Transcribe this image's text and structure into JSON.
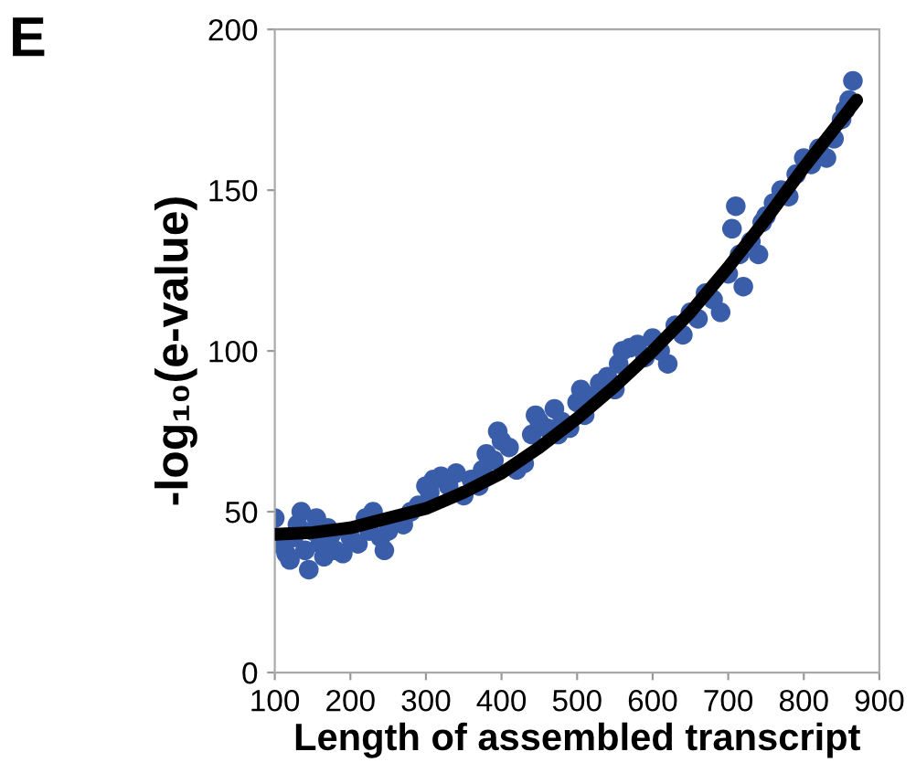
{
  "chart_data": {
    "type": "scatter",
    "xlabel": "Length of assembled transcript",
    "ylabel": "-log₁₀(e-value)",
    "annotations": [
      "E"
    ],
    "xlim": [
      100,
      900
    ],
    "xticks": [
      100,
      200,
      300,
      400,
      500,
      600,
      700,
      800,
      900
    ],
    "ylim": [
      0,
      200
    ],
    "yticks": [
      0,
      50,
      100,
      150,
      200
    ],
    "grid": false,
    "series": [
      {
        "color": "#3a5daa",
        "marker": "circle",
        "x": [
          100,
          105,
          110,
          115,
          120,
          125,
          130,
          135,
          140,
          145,
          150,
          155,
          160,
          165,
          170,
          175,
          180,
          190,
          200,
          210,
          220,
          225,
          230,
          240,
          245,
          250,
          260,
          270,
          280,
          290,
          300,
          305,
          310,
          320,
          330,
          340,
          350,
          360,
          370,
          375,
          380,
          390,
          395,
          400,
          410,
          420,
          430,
          440,
          445,
          450,
          460,
          470,
          475,
          480,
          490,
          500,
          505,
          510,
          520,
          530,
          540,
          550,
          555,
          560,
          570,
          580,
          590,
          600,
          610,
          620,
          630,
          640,
          650,
          660,
          670,
          680,
          690,
          700,
          705,
          710,
          715,
          720,
          730,
          740,
          745,
          750,
          760,
          770,
          780,
          790,
          800,
          810,
          820,
          830,
          840,
          850,
          855,
          860,
          865
        ],
        "values": [
          48,
          40,
          null,
          37,
          35,
          42,
          46,
          50,
          38,
          32,
          44,
          48,
          40,
          36,
          45,
          43,
          38,
          37,
          42,
          40,
          48,
          44,
          50,
          42,
          38,
          44,
          null,
          46,
          50,
          52,
          58,
          56,
          60,
          61,
          58,
          62,
          55,
          60,
          58,
          63,
          68,
          66,
          75,
          72,
          70,
          63,
          65,
          74,
          80,
          78,
          76,
          82,
          74,
          78,
          76,
          84,
          88,
          80,
          86,
          90,
          92,
          88,
          96,
          100,
          101,
          102,
          98,
          104,
          100,
          96,
          108,
          105,
          112,
          110,
          118,
          116,
          112,
          124,
          138,
          145,
          130,
          120,
          134,
          130,
          140,
          142,
          146,
          150,
          148,
          155,
          160,
          158,
          163,
          160,
          166,
          172,
          175,
          178,
          184
        ]
      },
      {
        "type": "line",
        "marker": "none",
        "color": "#000000",
        "x": [
          100,
          150,
          200,
          250,
          300,
          350,
          400,
          450,
          500,
          550,
          600,
          650,
          700,
          750,
          800,
          850,
          870
        ],
        "values": [
          43,
          43.5,
          45,
          48,
          51,
          56,
          62,
          70,
          79,
          89,
          100,
          112,
          126,
          141,
          157,
          172,
          178
        ]
      }
    ]
  }
}
